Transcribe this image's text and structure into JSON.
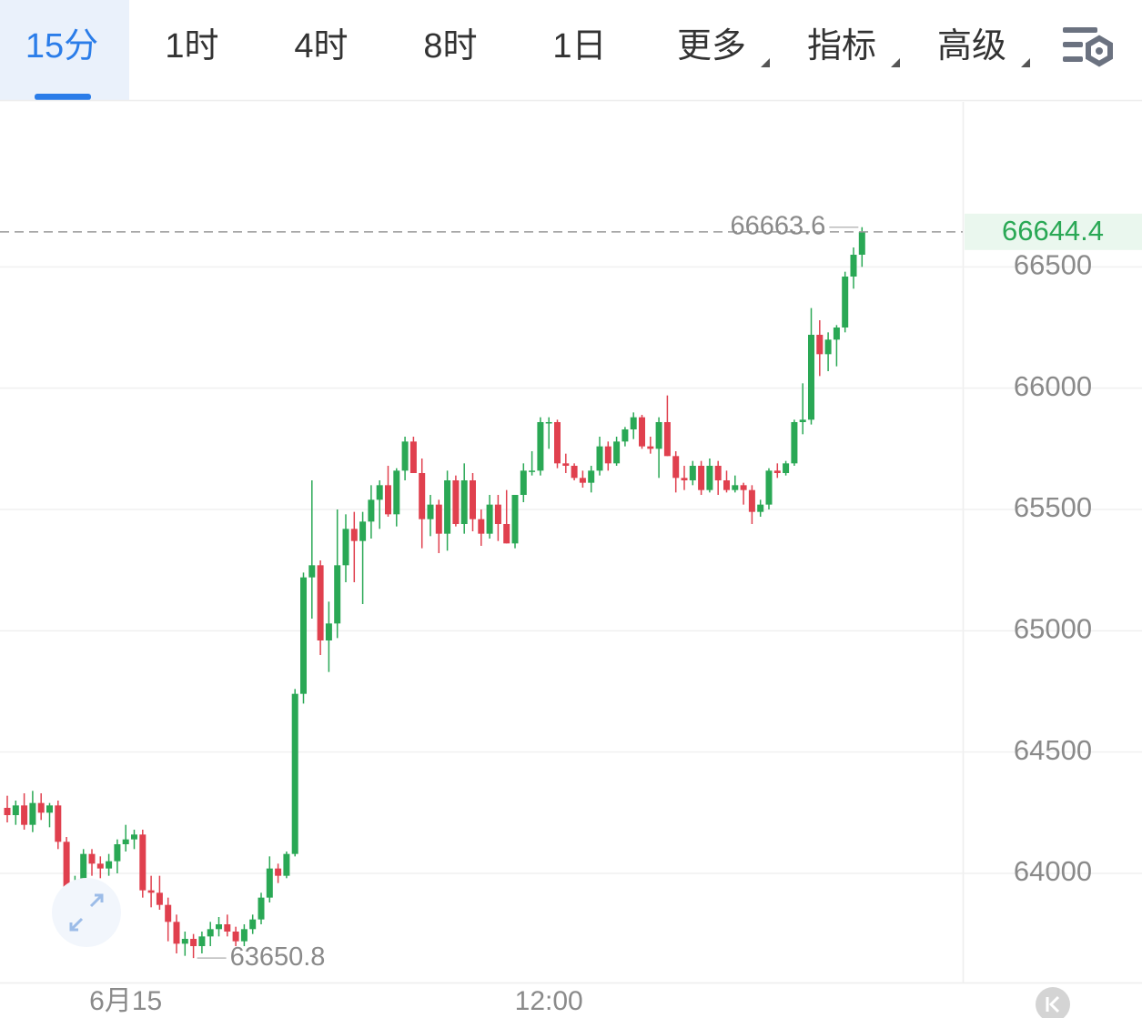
{
  "tabs": [
    "15分",
    "1时",
    "4时",
    "8时",
    "1日",
    "更多",
    "指标",
    "高级"
  ],
  "active_tab": 0,
  "chart_data": {
    "type": "candlestick",
    "up_color": "#2aa855",
    "down_color": "#e0404e",
    "ylim": [
      63550,
      67180
    ],
    "yticks": [
      64000,
      64500,
      65000,
      65500,
      66000,
      66500
    ],
    "grid": true,
    "categories": [
      null,
      null,
      null,
      null,
      null,
      null,
      null,
      null,
      null,
      null,
      null,
      null,
      null,
      null,
      "6月15",
      null,
      null,
      null,
      null,
      null,
      null,
      null,
      null,
      null,
      null,
      null,
      null,
      null,
      null,
      null,
      null,
      null,
      null,
      null,
      null,
      null,
      null,
      null,
      null,
      null,
      null,
      null,
      null,
      null,
      null,
      null,
      null,
      null,
      null,
      null,
      null,
      null,
      null,
      null,
      null,
      null,
      null,
      null,
      null,
      null,
      null,
      null,
      null,
      null,
      "12:00",
      null,
      null,
      null,
      null,
      null,
      null,
      null,
      null,
      null,
      null,
      null,
      null,
      null,
      null,
      null,
      null,
      null,
      null,
      null,
      null,
      null,
      null,
      null,
      null,
      null,
      null,
      null,
      null,
      null,
      null,
      null,
      null,
      null,
      null,
      null,
      null,
      null
    ],
    "open": [
      64270,
      64240,
      64280,
      64200,
      64290,
      64250,
      64280,
      64130,
      63910,
      63960,
      64080,
      64040,
      64020,
      64050,
      64120,
      64140,
      64160,
      63930,
      63920,
      63870,
      63800,
      63710,
      63730,
      63700,
      63740,
      63770,
      63790,
      63760,
      63720,
      63770,
      63810,
      63900,
      64020,
      63990,
      64080,
      64740,
      65220,
      65270,
      64960,
      65030,
      65270,
      65420,
      65370,
      65450,
      65540,
      65600,
      65480,
      65660,
      65780,
      65650,
      65460,
      65520,
      65400,
      65620,
      65440,
      65620,
      65460,
      65400,
      65520,
      65440,
      65360,
      65560,
      65660,
      65660,
      65860,
      65860,
      65690,
      65680,
      65630,
      65610,
      65660,
      65760,
      65690,
      65780,
      65830,
      65880,
      65760,
      65750,
      65860,
      65720,
      65630,
      65620,
      65680,
      65580,
      65680,
      65620,
      65580,
      65600,
      65580,
      65490,
      65520,
      65660,
      65650,
      65690,
      65860,
      65870,
      66220,
      66140,
      66200,
      66250,
      66460,
      66550
    ],
    "high": [
      64320,
      64300,
      64330,
      64340,
      64330,
      64290,
      64300,
      64150,
      63990,
      64100,
      64100,
      64070,
      64080,
      64140,
      64200,
      64180,
      64180,
      63990,
      63990,
      63900,
      63830,
      63760,
      63750,
      63760,
      63800,
      63820,
      63830,
      63780,
      63790,
      63830,
      63920,
      64070,
      64040,
      64090,
      64760,
      65240,
      65620,
      65290,
      65120,
      65500,
      65480,
      65490,
      65490,
      65600,
      65620,
      65680,
      65670,
      65800,
      65800,
      65710,
      65560,
      65540,
      65660,
      65640,
      65690,
      65650,
      65500,
      65560,
      65560,
      65580,
      65560,
      65690,
      65740,
      65880,
      65880,
      65870,
      65730,
      65690,
      65660,
      65680,
      65800,
      65780,
      65800,
      65840,
      65900,
      65890,
      65800,
      65880,
      65970,
      65740,
      65680,
      65700,
      65700,
      65710,
      65700,
      65660,
      65640,
      65610,
      65600,
      65540,
      65670,
      65690,
      65700,
      65870,
      66020,
      66330,
      66280,
      66230,
      66260,
      66480,
      66580,
      66663.6
    ],
    "low": [
      64210,
      64200,
      64180,
      64170,
      64220,
      64190,
      64100,
      63870,
      63830,
      63940,
      63990,
      63980,
      63990,
      64000,
      64090,
      64100,
      63900,
      63860,
      63850,
      63720,
      63670,
      63660,
      63650.8,
      63670,
      63700,
      63740,
      63740,
      63700,
      63700,
      63750,
      63790,
      63880,
      63960,
      63980,
      64070,
      64700,
      65050,
      64900,
      64830,
      64970,
      65200,
      65200,
      65110,
      65380,
      65420,
      65470,
      65430,
      65620,
      65650,
      65340,
      65390,
      65320,
      65330,
      65430,
      65400,
      65410,
      65350,
      65380,
      65370,
      65360,
      65340,
      65530,
      65640,
      65640,
      65750,
      65670,
      65650,
      65620,
      65590,
      65570,
      65640,
      65660,
      65680,
      65760,
      65790,
      65750,
      65730,
      65630,
      65720,
      65570,
      65580,
      65600,
      65560,
      65570,
      65560,
      65570,
      65570,
      65520,
      65440,
      65470,
      65500,
      65630,
      65640,
      65680,
      65810,
      65850,
      66050,
      66070,
      66090,
      66230,
      66410,
      66500
    ],
    "close": [
      64240,
      64280,
      64200,
      64290,
      64250,
      64280,
      64130,
      63910,
      63960,
      64080,
      64040,
      64020,
      64050,
      64120,
      64140,
      64160,
      63930,
      63920,
      63870,
      63800,
      63710,
      63730,
      63700,
      63740,
      63770,
      63790,
      63760,
      63720,
      63770,
      63810,
      63900,
      64020,
      63990,
      64080,
      64740,
      65220,
      65270,
      64960,
      65030,
      65270,
      65420,
      65370,
      65450,
      65540,
      65600,
      65480,
      65660,
      65780,
      65650,
      65460,
      65520,
      65400,
      65620,
      65440,
      65620,
      65460,
      65400,
      65520,
      65440,
      65360,
      65560,
      65660,
      65660,
      65860,
      65860,
      65690,
      65680,
      65630,
      65610,
      65660,
      65760,
      65690,
      65780,
      65830,
      65880,
      65760,
      65750,
      65860,
      65720,
      65630,
      65620,
      65680,
      65580,
      65680,
      65620,
      65580,
      65600,
      65580,
      65490,
      65520,
      65660,
      65650,
      65690,
      65860,
      65870,
      66220,
      66140,
      66200,
      66250,
      66460,
      66550,
      66644.4
    ]
  }
}
